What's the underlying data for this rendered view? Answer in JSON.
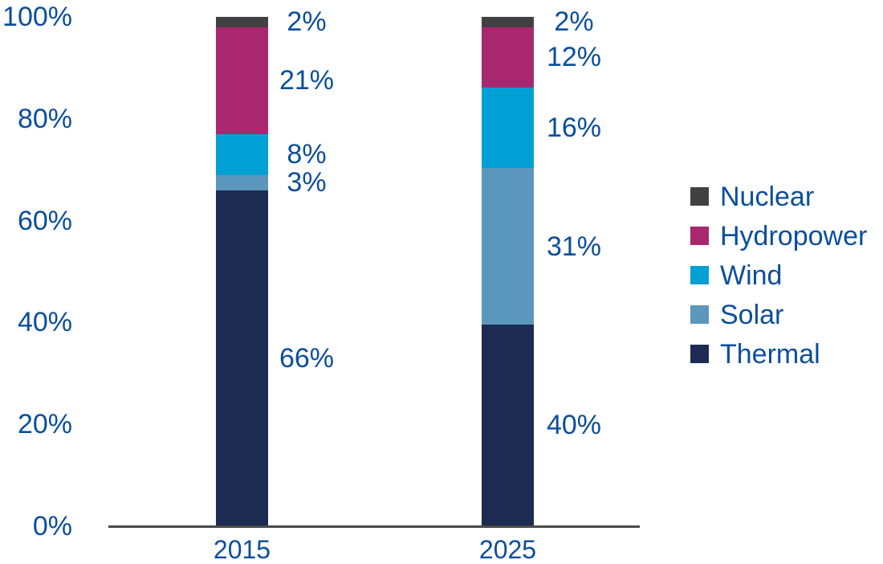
{
  "colors": {
    "text": "#0a4e9d",
    "axis": "#4a4a4a",
    "background": "#ffffff"
  },
  "chart_data": {
    "type": "bar",
    "stacked": true,
    "title": "",
    "xlabel": "",
    "ylabel": "",
    "categories": [
      "2015",
      "2025"
    ],
    "series": [
      {
        "name": "Thermal",
        "color": "#1d2b52",
        "values": [
          66,
          40
        ]
      },
      {
        "name": "Solar",
        "color": "#5c97bd",
        "values": [
          3,
          31
        ]
      },
      {
        "name": "Wind",
        "color": "#00a0d4",
        "values": [
          8,
          16
        ]
      },
      {
        "name": "Hydropower",
        "color": "#a9276e",
        "values": [
          21,
          12
        ]
      },
      {
        "name": "Nuclear",
        "color": "#414042",
        "values": [
          2,
          2
        ]
      }
    ],
    "data_labels": [
      [
        "66%",
        "3%",
        "8%",
        "21%",
        "2%"
      ],
      [
        "40%",
        "31%",
        "16%",
        "12%",
        "2%"
      ]
    ],
    "y_ticks": [
      {
        "label": "0%",
        "value": 0
      },
      {
        "label": "20%",
        "value": 20
      },
      {
        "label": "40%",
        "value": 40
      },
      {
        "label": "60%",
        "value": 60
      },
      {
        "label": "80%",
        "value": 80
      },
      {
        "label": "100%",
        "value": 100
      }
    ],
    "ylim": [
      0,
      100
    ],
    "grid": false,
    "legend": {
      "position": "right",
      "items": [
        {
          "label": "Nuclear",
          "color": "#414042"
        },
        {
          "label": "Hydropower",
          "color": "#a9276e"
        },
        {
          "label": "Wind",
          "color": "#00a0d4"
        },
        {
          "label": "Solar",
          "color": "#5c97bd"
        },
        {
          "label": "Thermal",
          "color": "#1d2b52"
        }
      ]
    }
  }
}
